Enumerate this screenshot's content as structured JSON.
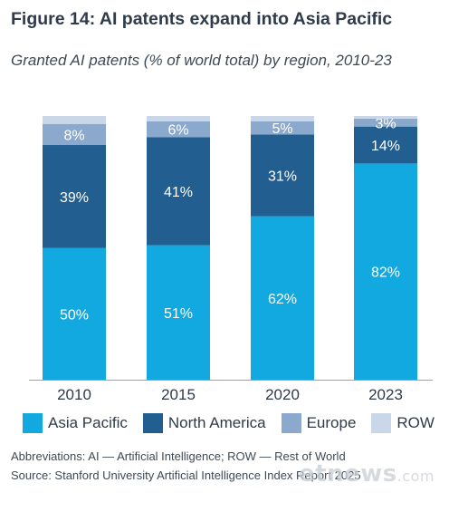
{
  "title": "Figure 14: AI patents expand into Asia Pacific",
  "subtitle": "Granted AI patents (% of world total) by region, 2010-23",
  "chart_data": {
    "type": "bar",
    "stacked": true,
    "categories": [
      "2010",
      "2015",
      "2020",
      "2023"
    ],
    "series": [
      {
        "name": "Asia Pacific",
        "color": "#12a8e0",
        "values": [
          50,
          51,
          62,
          82
        ],
        "labels": [
          "50%",
          "51%",
          "62%",
          "82%"
        ]
      },
      {
        "name": "North America",
        "color": "#225e8f",
        "values": [
          39,
          41,
          31,
          14
        ],
        "labels": [
          "39%",
          "41%",
          "31%",
          "14%"
        ]
      },
      {
        "name": "Europe",
        "color": "#8ba9cc",
        "values": [
          8,
          6,
          5,
          3
        ],
        "labels": [
          "8%",
          "6%",
          "5%",
          "3%"
        ]
      },
      {
        "name": "ROW",
        "color": "#c9d7e8",
        "values": [
          3,
          2,
          2,
          1
        ],
        "labels": [
          "",
          "",
          "",
          ""
        ]
      }
    ],
    "ylim": [
      0,
      100
    ],
    "grid": false,
    "legend": "bottom"
  },
  "notes": {
    "abbreviations": "Abbreviations: AI — Artificial Intelligence; ROW — Rest of World",
    "source": "Source: Stanford University Artificial Intelligence Index Report 2025"
  },
  "watermark": {
    "text": "etnews",
    "suffix": ".com"
  }
}
